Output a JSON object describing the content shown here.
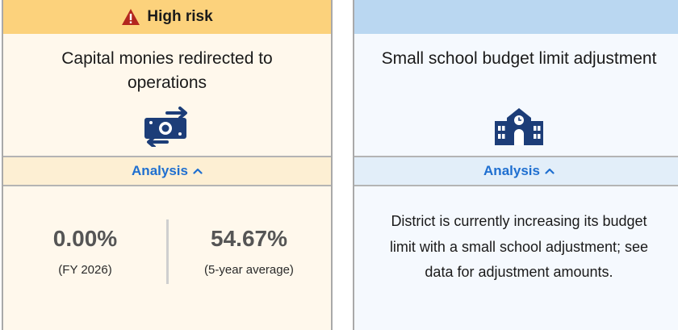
{
  "cards": [
    {
      "header": "High risk",
      "title": "Capital monies redirected to operations",
      "icon": "money-transfer-icon",
      "analysis_label": "Analysis",
      "stats": [
        {
          "value": "0.00%",
          "label": "(FY 2026)"
        },
        {
          "value": "54.67%",
          "label": "(5-year average)"
        }
      ],
      "header_color": "#fcd27c"
    },
    {
      "header": "",
      "title": "Small school budget limit adjustment",
      "icon": "school-building-icon",
      "analysis_label": "Analysis",
      "description": "District is currently increasing its budget limit with a small school adjustment; see data for adjustment amounts.",
      "header_color": "#bad7f1"
    }
  ],
  "colors": {
    "accent_link": "#1f6fd0",
    "icon_navy": "#1c3d78",
    "warning_red": "#b3261e"
  }
}
